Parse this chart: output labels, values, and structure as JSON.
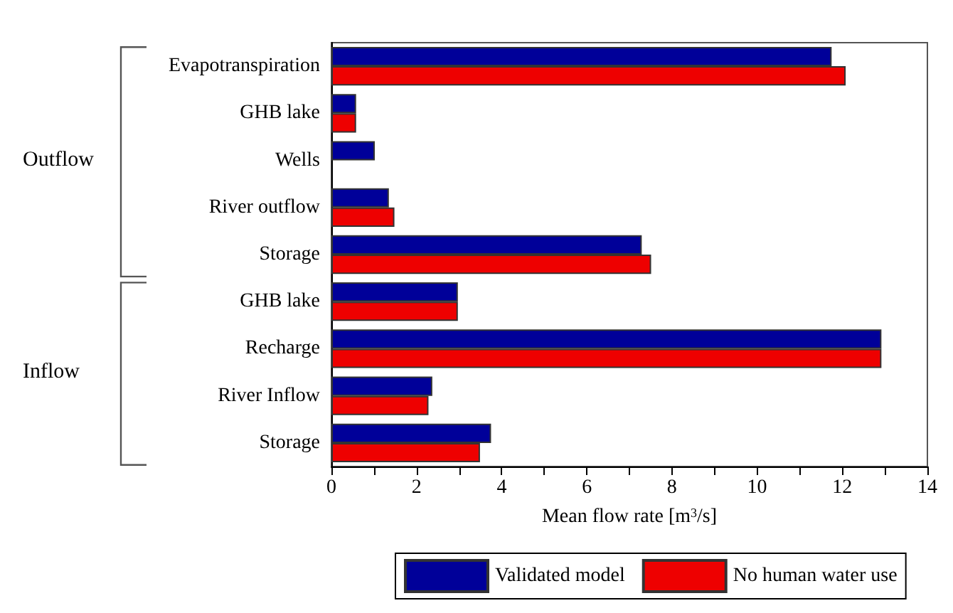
{
  "chart_data": {
    "type": "bar",
    "orientation": "horizontal",
    "xlabel": "Mean flow rate [m$^{3}$/s]",
    "categories": [
      "Evapotranspiration",
      "GHB lake",
      "Wells",
      "River outflow",
      "Storage",
      "GHB lake",
      "Recharge",
      "River Inflow",
      "Storage"
    ],
    "series": [
      {
        "name": "Validated model",
        "color": "#000099",
        "values": [
          11.75,
          0.58,
          1.02,
          1.35,
          7.29,
          2.97,
          12.92,
          2.37,
          3.75
        ]
      },
      {
        "name": "No human water use",
        "color": "#ee0000",
        "values": [
          12.08,
          0.58,
          null,
          1.48,
          7.51,
          2.97,
          12.92,
          2.28,
          3.49
        ]
      }
    ],
    "xlim": [
      0,
      14
    ],
    "xticks": [
      0,
      2,
      4,
      6,
      8,
      10,
      12,
      14
    ],
    "annotations": [
      "Outflow",
      "Inflow"
    ],
    "legend": "bottom",
    "grid": false
  }
}
